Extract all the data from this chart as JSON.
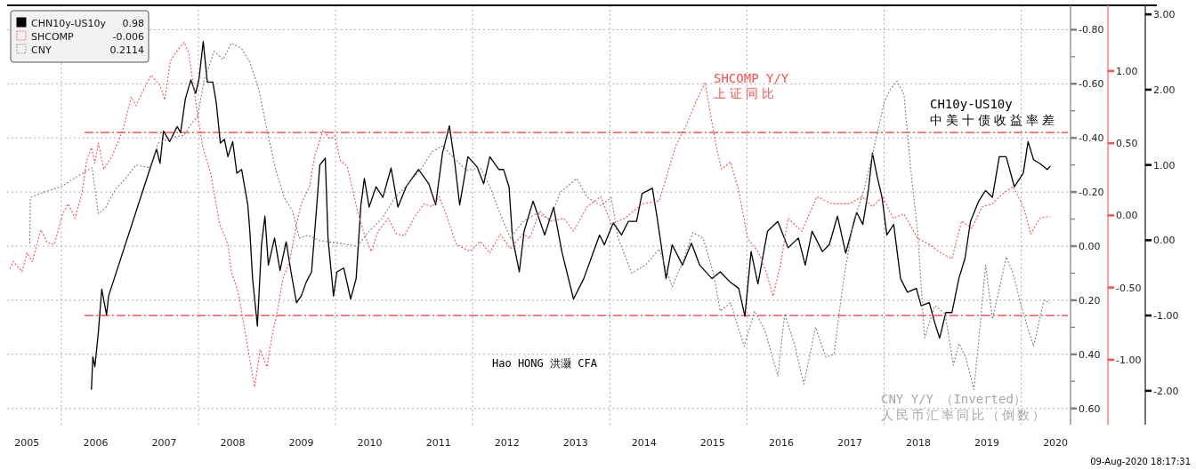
{
  "chart_data": {
    "type": "line",
    "xlim": [
      2005.21,
      2020.68
    ],
    "xticks": [
      {
        "value": 2005.5,
        "label": "2005"
      },
      {
        "value": 2006.5,
        "label": "2006"
      },
      {
        "value": 2007.5,
        "label": "2007"
      },
      {
        "value": 2008.5,
        "label": "2008"
      },
      {
        "value": 2009.5,
        "label": "2009"
      },
      {
        "value": 2010.5,
        "label": "2010"
      },
      {
        "value": 2011.5,
        "label": "2011"
      },
      {
        "value": 2012.5,
        "label": "2012"
      },
      {
        "value": 2013.5,
        "label": "2013"
      },
      {
        "value": 2014.5,
        "label": "2014"
      },
      {
        "value": 2015.5,
        "label": "2015"
      },
      {
        "value": 2016.5,
        "label": "2016"
      },
      {
        "value": 2017.5,
        "label": "2017"
      },
      {
        "value": 2018.5,
        "label": "2018"
      },
      {
        "value": 2019.5,
        "label": "2019"
      },
      {
        "value": 2020.5,
        "label": "2020"
      },
      {
        "value": 2006,
        "label": null
      },
      {
        "value": 2008,
        "label": null
      },
      {
        "value": 2010,
        "label": null
      },
      {
        "value": 2012,
        "label": null
      },
      {
        "value": 2014,
        "label": null
      },
      {
        "value": 2016,
        "label": null
      },
      {
        "value": 2018,
        "label": null
      },
      {
        "value": 2020,
        "label": null
      }
    ],
    "ylim": [
      -2.45,
      3.12
    ],
    "yticks": [
      {
        "value": 3,
        "label": "3.00"
      },
      {
        "value": 2,
        "label": "2.00"
      },
      {
        "value": 1,
        "label": "1.00"
      },
      {
        "value": 0,
        "label": "0.00"
      },
      {
        "value": -1,
        "label": "-1.00"
      },
      {
        "value": -2,
        "label": "-2.00"
      }
    ],
    "y2lim": [
      -1.45,
      1.455
    ],
    "y2ticks": [
      {
        "value": 1,
        "label": "1.00"
      },
      {
        "value": 0.5,
        "label": "0.50"
      },
      {
        "value": 0,
        "label": "0.00"
      },
      {
        "value": -0.5,
        "label": "-0.50"
      },
      {
        "value": -1,
        "label": "-1.00"
      }
    ],
    "y3lim": [
      0.66,
      -0.89
    ],
    "y3ticks": [
      {
        "value": -0.8,
        "label": "-0.80"
      },
      {
        "value": -0.7,
        "label": null
      },
      {
        "value": -0.6,
        "label": "-0.60"
      },
      {
        "value": -0.5,
        "label": null
      },
      {
        "value": -0.4,
        "label": "-0.40"
      },
      {
        "value": -0.3,
        "label": null
      },
      {
        "value": -0.2,
        "label": "-0.20"
      },
      {
        "value": -0.1,
        "label": null
      },
      {
        "value": 0,
        "label": "0.00"
      },
      {
        "value": 0.1,
        "label": null
      },
      {
        "value": 0.2,
        "label": "0.20"
      },
      {
        "value": 0.3,
        "label": null
      },
      {
        "value": 0.4,
        "label": "0.40"
      },
      {
        "value": 0.5,
        "label": null
      },
      {
        "value": 0.6,
        "label": "0.60"
      }
    ],
    "grid": true,
    "legend": "top left",
    "ref_lines": [
      {
        "axis": "y",
        "value": 1.43,
        "color": "#ff3333",
        "line_style": "dashed"
      },
      {
        "axis": "y",
        "value": -1.0,
        "color": "#ff3333",
        "line_style": "dashed"
      }
    ],
    "annotations": [
      "0.98",
      "-0.006",
      "0.2114",
      "SHCOMP Y/Y",
      "上证同比",
      "CH10y-US10y",
      "中美十债收益率差",
      "Hao HONG 洪灏 CFA",
      "CNY Y/Y （Inverted）",
      "人民币汇率同比（倒数）",
      "09-Aug-2020 18:17:31"
    ],
    "series": [
      {
        "name": "CHN10y-US10y",
        "color": "#000000",
        "line_style": "solid",
        "x": [
          2006.44,
          2006.46,
          2006.49,
          2006.54,
          2006.59,
          2006.66,
          2006.69,
          2007.29,
          2007.39,
          2007.44,
          2007.49,
          2007.58,
          2007.69,
          2007.74,
          2007.81,
          2007.89,
          2007.96,
          2008.01,
          2008.07,
          2008.13,
          2008.21,
          2008.26,
          2008.32,
          2008.38,
          2008.43,
          2008.5,
          2008.56,
          2008.63,
          2008.72,
          2008.75,
          2008.79,
          2008.86,
          2008.92,
          2008.97,
          2009.02,
          2009.11,
          2009.19,
          2009.28,
          2009.35,
          2009.43,
          2009.5,
          2009.57,
          2009.65,
          2009.72,
          2009.77,
          2009.85,
          2009.89,
          2009.97,
          2010.02,
          2010.12,
          2010.22,
          2010.3,
          2010.37,
          2010.42,
          2010.49,
          2010.59,
          2010.69,
          2010.81,
          2010.91,
          2011.03,
          2011.21,
          2011.36,
          2011.46,
          2011.56,
          2011.66,
          2011.74,
          2011.81,
          2011.93,
          2012.06,
          2012.16,
          2012.25,
          2012.38,
          2012.45,
          2012.53,
          2012.58,
          2012.68,
          2012.75,
          2012.88,
          2013.05,
          2013.18,
          2013.3,
          2013.47,
          2013.62,
          2013.85,
          2013.92,
          2014.05,
          2014.17,
          2014.27,
          2014.39,
          2014.47,
          2014.62,
          2014.69,
          2014.82,
          2014.91,
          2015.06,
          2015.19,
          2015.31,
          2015.49,
          2015.61,
          2015.76,
          2015.88,
          2015.97,
          2016.06,
          2016.16,
          2016.3,
          2016.45,
          2016.6,
          2016.75,
          2016.85,
          2016.95,
          2017.1,
          2017.2,
          2017.32,
          2017.44,
          2017.6,
          2017.69,
          2017.77,
          2017.83,
          2017.9,
          2017.97,
          2018.04,
          2018.14,
          2018.24,
          2018.34,
          2018.47,
          2018.54,
          2018.66,
          2018.74,
          2018.81,
          2018.9,
          2018.99,
          2019.09,
          2019.18,
          2019.26,
          2019.38,
          2019.48,
          2019.58,
          2019.68,
          2019.78,
          2019.9,
          2020.03,
          2020.1,
          2020.18,
          2020.27,
          2020.38,
          2020.42
        ],
        "values": [
          -1.98,
          -1.55,
          -1.68,
          -1.23,
          -0.65,
          -0.99,
          -0.74,
          0.94,
          1.21,
          1.02,
          1.45,
          1.31,
          1.51,
          1.43,
          1.88,
          2.13,
          1.95,
          2.15,
          2.64,
          2.1,
          2.1,
          1.83,
          1.29,
          1.34,
          1.11,
          1.31,
          0.89,
          0.94,
          0.47,
          0.12,
          -0.51,
          -1.14,
          -0.06,
          0.32,
          -0.33,
          0.03,
          -0.4,
          -0.02,
          -0.42,
          -0.83,
          -0.74,
          -0.56,
          -0.42,
          0.39,
          1.0,
          1.09,
          0.03,
          -0.74,
          -0.42,
          -0.37,
          -0.78,
          -0.51,
          0.47,
          0.82,
          0.44,
          0.71,
          0.57,
          0.96,
          0.44,
          0.71,
          0.94,
          0.75,
          0.47,
          1.16,
          1.52,
          1.02,
          0.47,
          1.11,
          0.98,
          0.75,
          1.11,
          0.94,
          0.94,
          0.71,
          0.03,
          -0.42,
          0.12,
          0.52,
          0.07,
          0.44,
          -0.15,
          -0.78,
          -0.51,
          0.07,
          -0.06,
          0.23,
          0.07,
          0.25,
          0.25,
          0.62,
          0.69,
          0.3,
          -0.51,
          -0.06,
          -0.33,
          -0.04,
          -0.33,
          -0.51,
          -0.42,
          -0.56,
          -0.64,
          -1.01,
          -0.15,
          -0.58,
          0.12,
          0.25,
          -0.1,
          0.03,
          -0.33,
          0.12,
          -0.15,
          -0.06,
          0.32,
          -0.17,
          0.37,
          0.21,
          0.66,
          1.16,
          0.84,
          0.57,
          0.07,
          0.21,
          -0.51,
          -0.69,
          -0.64,
          -0.87,
          -0.83,
          -1.1,
          -1.3,
          -0.96,
          -0.96,
          -0.51,
          -0.24,
          0.25,
          0.52,
          0.66,
          0.57,
          1.11,
          1.11,
          0.71,
          0.89,
          1.31,
          1.07,
          1.02,
          0.94,
          0.98
        ]
      },
      {
        "name": "SHCOMP",
        "color": "#ff4d4d",
        "line_style": "dotted",
        "axis": "y2",
        "x": [
          2005.25,
          2005.3,
          2005.43,
          2005.5,
          2005.58,
          2005.7,
          2005.8,
          2005.9,
          2006.02,
          2006.1,
          2006.2,
          2006.3,
          2006.37,
          2006.44,
          2006.49,
          2006.54,
          2006.62,
          2006.74,
          2006.89,
          2007.02,
          2007.09,
          2007.19,
          2007.31,
          2007.44,
          2007.51,
          2007.59,
          2007.69,
          2007.79,
          2007.86,
          2007.96,
          2008.06,
          2008.18,
          2008.31,
          2008.43,
          2008.48,
          2008.58,
          2008.71,
          2008.82,
          2008.9,
          2009.0,
          2009.08,
          2009.15,
          2009.23,
          2009.33,
          2009.43,
          2009.5,
          2009.62,
          2009.7,
          2009.82,
          2009.92,
          2009.99,
          2010.07,
          2010.17,
          2010.32,
          2010.42,
          2010.52,
          2010.62,
          2010.77,
          2010.89,
          2011.01,
          2011.14,
          2011.29,
          2011.41,
          2011.51,
          2011.61,
          2011.76,
          2011.96,
          2012.11,
          2012.25,
          2012.4,
          2012.55,
          2012.73,
          2012.83,
          2012.98,
          2013.13,
          2013.33,
          2013.47,
          2013.67,
          2013.87,
          2014.02,
          2014.22,
          2014.47,
          2014.72,
          2014.86,
          2014.96,
          2015.11,
          2015.26,
          2015.39,
          2015.49,
          2015.56,
          2015.63,
          2015.76,
          2015.88,
          2016.01,
          2016.16,
          2016.28,
          2016.38,
          2016.49,
          2016.6,
          2016.8,
          2017.02,
          2017.24,
          2017.49,
          2017.68,
          2017.83,
          2017.98,
          2018.13,
          2018.29,
          2018.49,
          2018.66,
          2018.79,
          2018.99,
          2019.13,
          2019.28,
          2019.43,
          2019.58,
          2019.73,
          2019.88,
          2020.03,
          2020.14,
          2020.27,
          2020.42
        ],
        "values": [
          -0.37,
          -0.32,
          -0.39,
          -0.26,
          -0.32,
          -0.1,
          -0.19,
          -0.2,
          0.01,
          0.08,
          -0.02,
          0.15,
          0.38,
          0.47,
          0.36,
          0.5,
          0.32,
          0.41,
          0.58,
          0.82,
          0.76,
          0.86,
          0.97,
          0.9,
          0.8,
          1.07,
          1.14,
          1.2,
          1.12,
          0.79,
          0.48,
          0.29,
          -0.06,
          -0.2,
          -0.39,
          -0.53,
          -0.89,
          -1.19,
          -0.93,
          -1.05,
          -0.82,
          -0.67,
          -0.44,
          -0.32,
          -0.06,
          0.08,
          0.2,
          0.42,
          0.59,
          0.53,
          0.55,
          0.38,
          0.34,
          0.03,
          -0.13,
          -0.25,
          -0.11,
          -0.02,
          -0.13,
          -0.14,
          -0.02,
          0.08,
          0.06,
          0.13,
          0.01,
          -0.2,
          -0.25,
          -0.18,
          -0.26,
          -0.13,
          -0.23,
          -0.13,
          -0.16,
          0.03,
          -0.04,
          -0.02,
          -0.11,
          0.06,
          0.13,
          -0.06,
          -0.02,
          0.08,
          0.1,
          0.32,
          0.48,
          0.62,
          0.79,
          0.92,
          0.64,
          0.46,
          0.32,
          0.37,
          0.17,
          -0.16,
          -0.25,
          -0.39,
          -0.56,
          -0.34,
          -0.02,
          -0.11,
          0.13,
          0.08,
          0.08,
          0.13,
          0.06,
          0.13,
          -0.02,
          0.01,
          -0.16,
          -0.2,
          -0.25,
          -0.3,
          -0.04,
          -0.09,
          0.06,
          0.08,
          0.15,
          0.2,
          0.06,
          -0.13,
          -0.02,
          -0.006
        ]
      },
      {
        "name": "CNY",
        "color": "#808080",
        "line_style": "dotted",
        "axis": "y3",
        "x": [
          2005.54,
          2005.55,
          2005.75,
          2006.0,
          2006.25,
          2006.45,
          2006.54,
          2006.64,
          2006.79,
          2006.94,
          2007.09,
          2007.29,
          2007.41,
          2007.59,
          2007.79,
          2007.89,
          2007.99,
          2008.08,
          2008.23,
          2008.36,
          2008.48,
          2008.63,
          2008.75,
          2008.88,
          2009.0,
          2009.13,
          2009.25,
          2009.37,
          2009.47,
          2009.6,
          2009.77,
          2010.07,
          2010.32,
          2010.47,
          2010.67,
          2010.87,
          2011.06,
          2011.26,
          2011.41,
          2011.56,
          2011.71,
          2011.91,
          2012.11,
          2012.25,
          2012.4,
          2012.55,
          2012.73,
          2012.93,
          2013.13,
          2013.28,
          2013.52,
          2013.67,
          2013.87,
          2014.02,
          2014.12,
          2014.32,
          2014.52,
          2014.72,
          2014.91,
          2015.06,
          2015.21,
          2015.36,
          2015.51,
          2015.61,
          2015.76,
          2015.96,
          2016.11,
          2016.26,
          2016.45,
          2016.55,
          2016.7,
          2016.83,
          2017.0,
          2017.15,
          2017.27,
          2017.4,
          2017.55,
          2017.7,
          2017.85,
          2018.0,
          2018.09,
          2018.19,
          2018.29,
          2018.39,
          2018.49,
          2018.59,
          2018.74,
          2018.89,
          2019.01,
          2019.09,
          2019.19,
          2019.31,
          2019.38,
          2019.48,
          2019.58,
          2019.68,
          2019.78,
          2019.88,
          2019.98,
          2020.08,
          2020.18,
          2020.33,
          2020.42
        ],
        "values": [
          -0.01,
          -0.18,
          -0.2,
          -0.22,
          -0.26,
          -0.29,
          -0.12,
          -0.14,
          -0.21,
          -0.25,
          -0.3,
          -0.29,
          -0.38,
          -0.4,
          -0.41,
          -0.45,
          -0.48,
          -0.61,
          -0.72,
          -0.69,
          -0.75,
          -0.73,
          -0.68,
          -0.58,
          -0.43,
          -0.28,
          -0.18,
          -0.13,
          -0.03,
          -0.04,
          -0.02,
          -0.01,
          0.0,
          -0.05,
          -0.1,
          -0.18,
          -0.23,
          -0.29,
          -0.35,
          -0.37,
          -0.33,
          -0.28,
          -0.29,
          -0.22,
          -0.12,
          -0.03,
          -0.09,
          -0.12,
          -0.1,
          -0.2,
          -0.25,
          -0.18,
          -0.15,
          -0.18,
          -0.03,
          0.1,
          0.07,
          0.01,
          0.15,
          0.06,
          -0.05,
          -0.03,
          0.1,
          0.24,
          0.21,
          0.37,
          0.24,
          0.31,
          0.48,
          0.25,
          0.37,
          0.51,
          0.3,
          0.41,
          0.4,
          0.14,
          -0.09,
          -0.2,
          -0.36,
          -0.53,
          -0.58,
          -0.61,
          -0.56,
          -0.28,
          -0.05,
          0.34,
          0.22,
          0.25,
          0.44,
          0.36,
          0.41,
          0.53,
          0.35,
          0.07,
          0.27,
          0.16,
          0.04,
          0.1,
          0.2,
          0.29,
          0.37,
          0.2,
          0.21
        ]
      }
    ]
  }
}
